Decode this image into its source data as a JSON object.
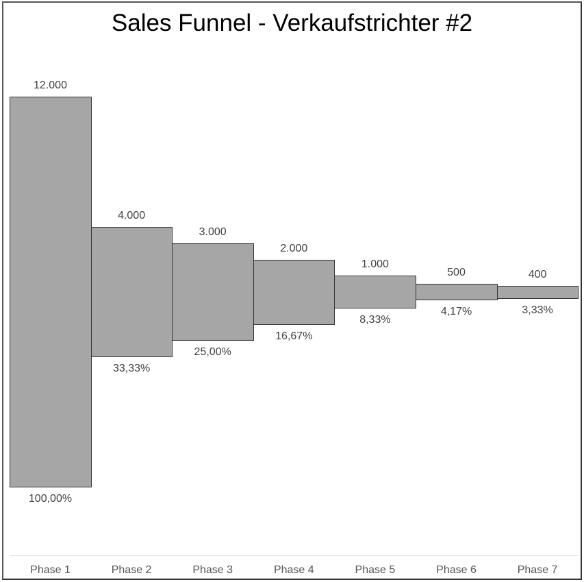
{
  "chart_data": {
    "type": "bar",
    "subtype": "centered-funnel",
    "title": "Sales Funnel - Verkaufstrichter #2",
    "categories": [
      "Phase 1",
      "Phase 2",
      "Phase 3",
      "Phase 4",
      "Phase 5",
      "Phase 6",
      "Phase 7"
    ],
    "values": [
      12000,
      4000,
      3000,
      2000,
      1000,
      500,
      400
    ],
    "value_labels": [
      "12.000",
      "4.000",
      "3.000",
      "2.000",
      "1.000",
      "500",
      "400"
    ],
    "percent_labels": [
      "100,00%",
      "33,33%",
      "25,00%",
      "16,67%",
      "8,33%",
      "4,17%",
      "3,33%"
    ],
    "xlabel": "",
    "ylabel": "",
    "grid": false,
    "legend": "none",
    "colors": {
      "bar_fill": "#a6a6a6",
      "bar_border": "#333333",
      "label_text": "#404040"
    }
  }
}
